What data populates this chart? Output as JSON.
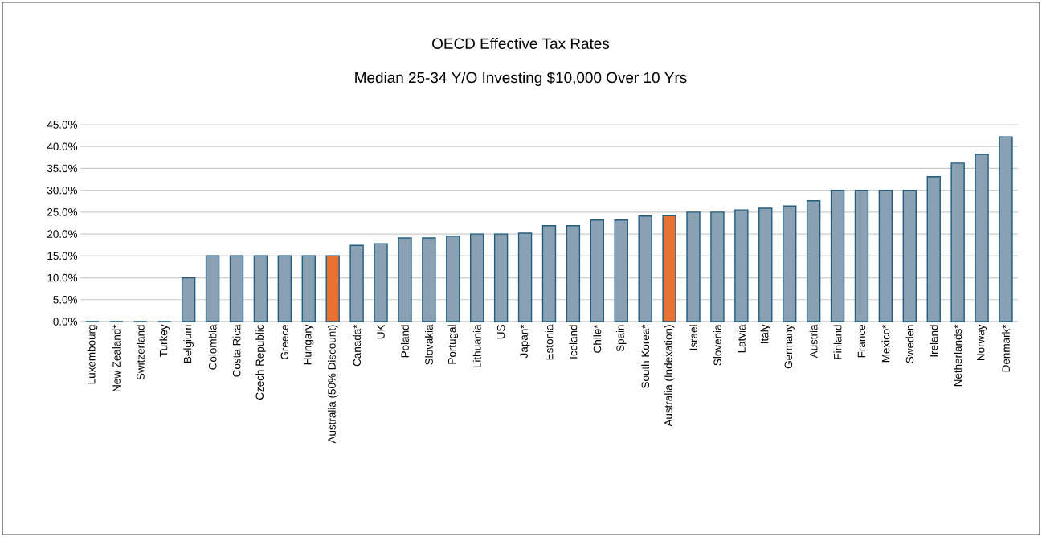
{
  "chart_data": {
    "type": "bar",
    "title": "OECD Effective Tax Rates",
    "subtitle": "Median 25-34 Y/O Investing $10,000 Over 10 Yrs",
    "categories": [
      "Luxembourg",
      "New Zealand*",
      "Switzerland",
      "Turkey",
      "Belgium",
      "Colombia",
      "Costa Rica",
      "Czech Republic",
      "Greece",
      "Hungary",
      "Australia (50% Discount)",
      "Canada*",
      "UK",
      "Poland",
      "Slovakia",
      "Portugal",
      "Lithuania",
      "US",
      "Japan*",
      "Estonia",
      "Iceland",
      "Chile*",
      "Spain",
      "South Korea*",
      "Australia (Indexation)",
      "Israel",
      "Slovenia",
      "Latvia",
      "Italy",
      "Germany",
      "Austria",
      "Finland",
      "France",
      "Mexico*",
      "Sweden",
      "Ireland",
      "Netherlands*",
      "Norway",
      "Denmark*"
    ],
    "values": [
      0,
      0,
      0,
      0,
      10,
      15,
      15,
      15,
      15,
      15,
      15,
      17.4,
      17.8,
      19.1,
      19.1,
      19.5,
      20,
      20,
      20.2,
      21.9,
      21.9,
      23.2,
      23.2,
      24.1,
      24.2,
      25,
      25,
      25.5,
      25.9,
      26.4,
      27.6,
      30,
      30,
      30,
      30,
      33.1,
      36.2,
      38.2,
      42.2
    ],
    "colors": [
      "#8aa0b3",
      "#8aa0b3",
      "#8aa0b3",
      "#8aa0b3",
      "#8aa0b3",
      "#8aa0b3",
      "#8aa0b3",
      "#8aa0b3",
      "#8aa0b3",
      "#8aa0b3",
      "#e97132",
      "#8aa0b3",
      "#8aa0b3",
      "#8aa0b3",
      "#8aa0b3",
      "#8aa0b3",
      "#8aa0b3",
      "#8aa0b3",
      "#8aa0b3",
      "#8aa0b3",
      "#8aa0b3",
      "#8aa0b3",
      "#8aa0b3",
      "#8aa0b3",
      "#e97132",
      "#8aa0b3",
      "#8aa0b3",
      "#8aa0b3",
      "#8aa0b3",
      "#8aa0b3",
      "#8aa0b3",
      "#8aa0b3",
      "#8aa0b3",
      "#8aa0b3",
      "#8aa0b3",
      "#8aa0b3",
      "#8aa0b3",
      "#8aa0b3",
      "#8aa0b3"
    ],
    "ylim": [
      0,
      45
    ],
    "yticks": [
      {
        "value": 0,
        "label": "0.0%"
      },
      {
        "value": 5,
        "label": "5.0%"
      },
      {
        "value": 10,
        "label": "10.0%"
      },
      {
        "value": 15,
        "label": "15.0%"
      },
      {
        "value": 20,
        "label": "20.0%"
      },
      {
        "value": 25,
        "label": "25.0%"
      },
      {
        "value": 30,
        "label": "30.0%"
      },
      {
        "value": 35,
        "label": "35.0%"
      },
      {
        "value": 40,
        "label": "40.0%"
      },
      {
        "value": 45,
        "label": "45.0%"
      }
    ],
    "grid": "y"
  }
}
